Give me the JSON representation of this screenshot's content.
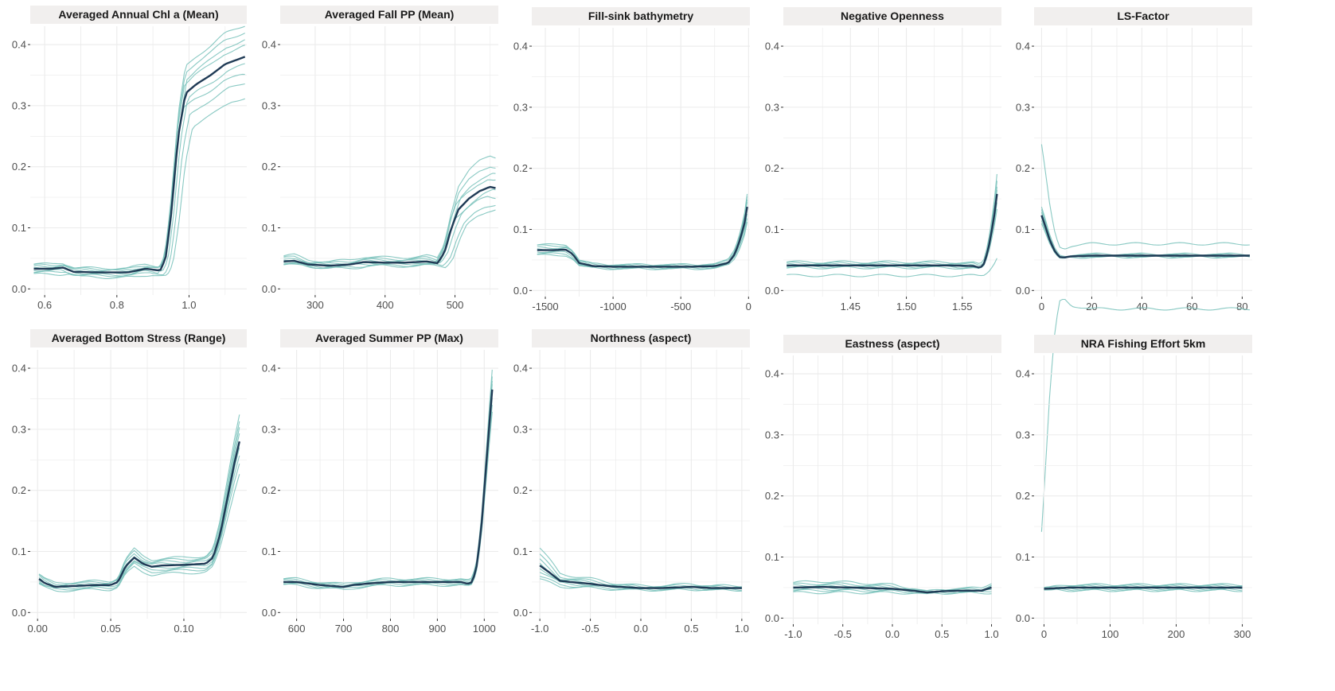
{
  "colors": {
    "mean_line": "#1f3a55",
    "replicate_line": "#7cc3bd",
    "strip_fill": "#f1efee",
    "grid": "#ebebeb",
    "tick_text": "#4d4d4d"
  },
  "chart_data": [
    {
      "type": "line",
      "title": "Averaged Annual Chl a (Mean)",
      "xlim": [
        0.56,
        1.16
      ],
      "ylim": [
        -0.01,
        0.43
      ],
      "x_ticks": [
        0.6,
        0.8,
        1.0
      ],
      "x_tick_labels": [
        "0.6",
        "0.8",
        "1.0"
      ],
      "y_ticks": [
        0.0,
        0.1,
        0.2,
        0.3,
        0.4
      ],
      "y_tick_labels": [
        "0.0",
        "0.1",
        "0.2",
        "0.3",
        "0.4"
      ],
      "mean": {
        "x": [
          0.57,
          0.62,
          0.65,
          0.68,
          0.75,
          0.83,
          0.88,
          0.92,
          0.935,
          0.95,
          0.97,
          0.99,
          1.02,
          1.06,
          1.1,
          1.155
        ],
        "y": [
          0.033,
          0.033,
          0.035,
          0.028,
          0.027,
          0.027,
          0.033,
          0.03,
          0.05,
          0.12,
          0.25,
          0.32,
          0.335,
          0.35,
          0.368,
          0.38
        ]
      },
      "replicates": {
        "spread": [
          0.045,
          0.035,
          0.025,
          0.015,
          -0.01,
          -0.025,
          -0.035,
          -0.055
        ],
        "shift": [
          0,
          0,
          0.004,
          -0.003,
          0.006,
          -0.005,
          0.012,
          0.02
        ]
      }
    },
    {
      "type": "line",
      "title": "Averaged Fall PP (Mean)",
      "xlim": [
        250,
        562
      ],
      "ylim": [
        -0.01,
        0.43
      ],
      "x_ticks": [
        300,
        400,
        500
      ],
      "x_tick_labels": [
        "300",
        "400",
        "500"
      ],
      "y_ticks": [
        0.0,
        0.1,
        0.2,
        0.3,
        0.4
      ],
      "y_tick_labels": [
        "0.0",
        "0.1",
        "0.2",
        "0.3",
        "0.4"
      ],
      "mean": {
        "x": [
          255,
          270,
          290,
          320,
          350,
          370,
          400,
          430,
          460,
          475,
          485,
          495,
          505,
          520,
          535,
          550,
          558
        ],
        "y": [
          0.045,
          0.046,
          0.04,
          0.038,
          0.04,
          0.044,
          0.043,
          0.043,
          0.045,
          0.042,
          0.06,
          0.1,
          0.13,
          0.148,
          0.16,
          0.167,
          0.165
        ]
      },
      "replicates": {
        "spread": [
          0.045,
          0.03,
          0.02,
          0.01,
          -0.005,
          -0.015,
          -0.025,
          -0.03
        ],
        "shift": [
          0,
          0,
          3,
          -3,
          5,
          -4,
          8,
          12
        ]
      }
    },
    {
      "type": "line",
      "title": "Fill-sink bathymetry",
      "xlim": [
        -1600,
        10
      ],
      "ylim": [
        -0.01,
        0.43
      ],
      "x_ticks": [
        -1500,
        -1000,
        -500,
        0
      ],
      "x_tick_labels": [
        "-1500",
        "-1000",
        "-500",
        "0"
      ],
      "y_ticks": [
        0.0,
        0.1,
        0.2,
        0.3,
        0.4
      ],
      "y_tick_labels": [
        "0.0",
        "0.1",
        "0.2",
        "0.3",
        "0.4"
      ],
      "mean": {
        "x": [
          -1560,
          -1450,
          -1350,
          -1300,
          -1250,
          -1150,
          -1000,
          -800,
          -600,
          -400,
          -250,
          -150,
          -100,
          -60,
          -30,
          -10
        ],
        "y": [
          0.066,
          0.066,
          0.067,
          0.06,
          0.045,
          0.04,
          0.039,
          0.039,
          0.039,
          0.039,
          0.04,
          0.045,
          0.06,
          0.085,
          0.11,
          0.137
        ]
      },
      "replicates": {
        "spread": [
          0.02,
          0.016,
          0.01,
          0.005,
          -0.004,
          -0.01,
          -0.015,
          -0.02
        ],
        "shift": [
          0,
          0,
          0,
          0,
          0,
          0,
          0,
          0
        ]
      }
    },
    {
      "type": "line",
      "title": "Negative Openness",
      "xlim": [
        1.39,
        1.585
      ],
      "ylim": [
        -0.01,
        0.43
      ],
      "x_ticks": [
        1.45,
        1.5,
        1.55
      ],
      "x_tick_labels": [
        "1.45",
        "1.50",
        "1.55"
      ],
      "y_ticks": [
        0.0,
        0.1,
        0.2,
        0.3,
        0.4
      ],
      "y_tick_labels": [
        "0.0",
        "0.1",
        "0.2",
        "0.3",
        "0.4"
      ],
      "mean": {
        "x": [
          1.393,
          1.45,
          1.5,
          1.54,
          1.56,
          1.566,
          1.57,
          1.574,
          1.578,
          1.581
        ],
        "y": [
          0.041,
          0.041,
          0.041,
          0.041,
          0.04,
          0.037,
          0.045,
          0.075,
          0.115,
          0.158
        ]
      },
      "replicates": {
        "spread": [
          0.03,
          0.02,
          0.01,
          0.004,
          -0.004,
          -0.012,
          -0.02,
          -0.09
        ],
        "shift": [
          0,
          0,
          0,
          0,
          0,
          0,
          0,
          0
        ]
      }
    },
    {
      "type": "line",
      "title": "LS-Factor",
      "xlim": [
        -3,
        84
      ],
      "ylim": [
        -0.01,
        0.43
      ],
      "x_ticks": [
        0,
        20,
        40,
        60,
        80
      ],
      "x_tick_labels": [
        "0",
        "20",
        "40",
        "60",
        "80"
      ],
      "y_ticks": [
        0.0,
        0.1,
        0.2,
        0.3,
        0.4
      ],
      "y_tick_labels": [
        "0.0",
        "0.1",
        "0.2",
        "0.3",
        "0.4"
      ],
      "mean": {
        "x": [
          0,
          1.5,
          3,
          5,
          7,
          9,
          12,
          20,
          40,
          60,
          83
        ],
        "y": [
          0.123,
          0.105,
          0.085,
          0.066,
          0.055,
          0.054,
          0.056,
          0.057,
          0.057,
          0.057,
          0.057
        ]
      },
      "replicates": {
        "spread": [
          0.012,
          0.007,
          0.003,
          -0.003,
          -0.006,
          -0.01,
          -0.45,
          0.1
        ],
        "shift": [
          0,
          0,
          0,
          0,
          0,
          0,
          0,
          0
        ]
      }
    },
    {
      "type": "line",
      "title": "Averaged Bottom Stress (Range)",
      "xlim": [
        -0.005,
        0.143
      ],
      "ylim": [
        -0.01,
        0.43
      ],
      "x_ticks": [
        0.0,
        0.05,
        0.1
      ],
      "x_tick_labels": [
        "0.00",
        "0.05",
        "0.10"
      ],
      "y_ticks": [
        0.0,
        0.1,
        0.2,
        0.3,
        0.4
      ],
      "y_tick_labels": [
        "0.0",
        "0.1",
        "0.2",
        "0.3",
        "0.4"
      ],
      "mean": {
        "x": [
          0.001,
          0.005,
          0.012,
          0.02,
          0.03,
          0.04,
          0.05,
          0.055,
          0.06,
          0.066,
          0.072,
          0.078,
          0.085,
          0.1,
          0.115,
          0.12,
          0.125,
          0.13,
          0.135,
          0.138
        ],
        "y": [
          0.055,
          0.048,
          0.042,
          0.043,
          0.044,
          0.045,
          0.045,
          0.05,
          0.075,
          0.09,
          0.08,
          0.075,
          0.077,
          0.078,
          0.08,
          0.09,
          0.13,
          0.19,
          0.25,
          0.28
        ]
      },
      "replicates": {
        "spread": [
          0.04,
          0.03,
          0.02,
          0.01,
          -0.01,
          -0.02,
          -0.03,
          -0.045
        ],
        "shift": [
          0,
          0,
          0,
          0,
          0,
          0,
          0,
          0
        ]
      }
    },
    {
      "type": "line",
      "title": "Averaged Summer PP (Max)",
      "xlim": [
        565,
        1030
      ],
      "ylim": [
        -0.01,
        0.43
      ],
      "x_ticks": [
        600,
        700,
        800,
        900,
        1000
      ],
      "x_tick_labels": [
        "600",
        "700",
        "800",
        "900",
        "1000"
      ],
      "y_ticks": [
        0.0,
        0.1,
        0.2,
        0.3,
        0.4
      ],
      "y_tick_labels": [
        "0.0",
        "0.1",
        "0.2",
        "0.3",
        "0.4"
      ],
      "mean": {
        "x": [
          572,
          600,
          650,
          700,
          720,
          760,
          800,
          850,
          900,
          950,
          965,
          975,
          985,
          995,
          1005,
          1012,
          1017
        ],
        "y": [
          0.05,
          0.05,
          0.045,
          0.042,
          0.045,
          0.048,
          0.05,
          0.05,
          0.05,
          0.05,
          0.047,
          0.05,
          0.08,
          0.15,
          0.25,
          0.32,
          0.365
        ]
      },
      "replicates": {
        "spread": [
          0.03,
          0.02,
          0.012,
          0.006,
          -0.006,
          -0.012,
          -0.02,
          -0.03
        ],
        "shift": [
          0,
          0,
          0,
          0,
          0,
          0,
          0,
          0
        ]
      }
    },
    {
      "type": "line",
      "title": "Northness (aspect)",
      "xlim": [
        -1.08,
        1.08
      ],
      "ylim": [
        -0.01,
        0.43
      ],
      "x_ticks": [
        -1.0,
        -0.5,
        0.0,
        0.5,
        1.0
      ],
      "x_tick_labels": [
        "-1.0",
        "-0.5",
        "0.0",
        "0.5",
        "1.0"
      ],
      "y_ticks": [
        0.0,
        0.1,
        0.2,
        0.3,
        0.4
      ],
      "y_tick_labels": [
        "0.0",
        "0.1",
        "0.2",
        "0.3",
        "0.4"
      ],
      "mean": {
        "x": [
          -1.0,
          -0.9,
          -0.8,
          -0.7,
          -0.5,
          -0.3,
          0.0,
          0.2,
          0.5,
          0.7,
          1.0
        ],
        "y": [
          0.077,
          0.065,
          0.052,
          0.05,
          0.047,
          0.043,
          0.04,
          0.04,
          0.042,
          0.04,
          0.04
        ]
      },
      "replicates": {
        "spread": [
          0.025,
          0.015,
          0.008,
          0.003,
          -0.003,
          -0.008,
          -0.015,
          -0.02
        ],
        "shift": [
          0,
          0,
          0,
          0,
          0,
          0,
          0,
          0
        ]
      }
    },
    {
      "type": "line",
      "title": "Eastness (aspect)",
      "xlim": [
        -1.1,
        1.1
      ],
      "ylim": [
        -0.01,
        0.43
      ],
      "x_ticks": [
        -1.0,
        -0.5,
        0.0,
        0.5,
        1.0
      ],
      "x_tick_labels": [
        "-1.0",
        "-0.5",
        "0.0",
        "0.5",
        "1.0"
      ],
      "y_ticks": [
        0.0,
        0.1,
        0.2,
        0.3,
        0.4
      ],
      "y_tick_labels": [
        "0.0",
        "0.1",
        "0.2",
        "0.3",
        "0.4"
      ],
      "mean": {
        "x": [
          -1.0,
          -0.7,
          -0.4,
          0.0,
          0.2,
          0.35,
          0.5,
          0.7,
          0.9,
          1.0
        ],
        "y": [
          0.05,
          0.051,
          0.05,
          0.048,
          0.045,
          0.042,
          0.044,
          0.045,
          0.045,
          0.05
        ]
      },
      "replicates": {
        "spread": [
          0.008,
          0.005,
          0.003,
          0.001,
          -0.001,
          -0.003,
          -0.005,
          -0.008
        ],
        "shift": [
          0,
          0,
          0,
          0,
          0,
          0,
          0,
          0
        ]
      }
    },
    {
      "type": "line",
      "title": "NRA Fishing Effort 5km",
      "xlim": [
        -15,
        315
      ],
      "ylim": [
        -0.01,
        0.43
      ],
      "x_ticks": [
        0,
        100,
        200,
        300
      ],
      "x_tick_labels": [
        "0",
        "100",
        "200",
        "300"
      ],
      "y_ticks": [
        0.0,
        0.1,
        0.2,
        0.3,
        0.4
      ],
      "y_tick_labels": [
        "0.0",
        "0.1",
        "0.2",
        "0.3",
        "0.4"
      ],
      "mean": {
        "x": [
          0,
          20,
          40,
          100,
          200,
          300
        ],
        "y": [
          0.048,
          0.049,
          0.05,
          0.05,
          0.05,
          0.05
        ]
      },
      "replicates": {
        "spread": [
          0.004,
          0.003,
          0.002,
          0.001,
          -0.001,
          -0.002,
          -0.003,
          -0.004
        ],
        "shift": [
          0,
          0,
          0,
          0,
          0,
          0,
          0,
          0
        ]
      }
    }
  ]
}
